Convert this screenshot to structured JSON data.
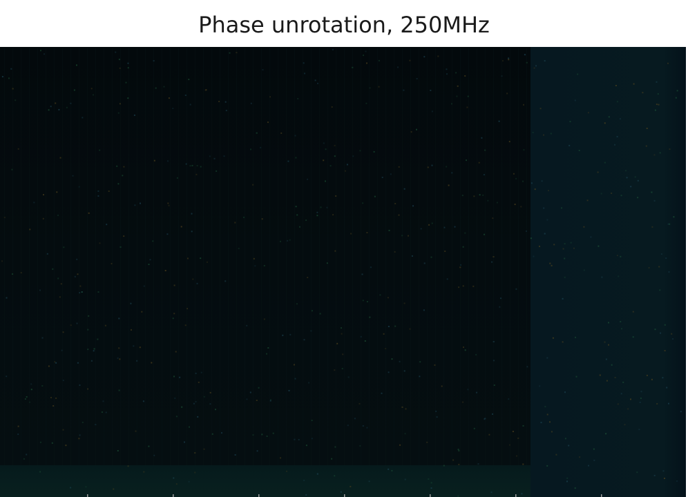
{
  "chart_data": {
    "type": "heatmap",
    "title": "Phase unrotation, 250MHz",
    "xlabel": "",
    "ylabel": "",
    "colorbar": false,
    "grid": false,
    "regions": [
      {
        "name": "",
        "value": 0.06
      },
      {
        "name": "",
        "value": 0.12
      },
      {
        "name": "",
        "value": 0.1
      }
    ],
    "palette": {
      "low": "#02090c",
      "mid": "#04151b",
      "high": "#08232b",
      "speckle_green": "#1f5a3a",
      "speckle_orange": "#5a4a1f",
      "speckle_cyan": "#1f4a5a"
    }
  }
}
